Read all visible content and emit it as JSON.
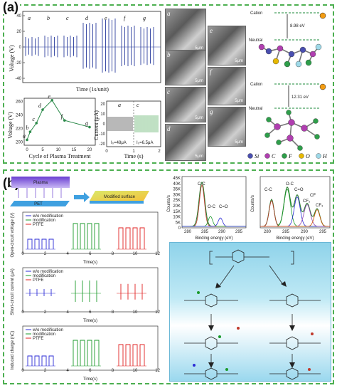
{
  "panel_a": {
    "label": "(a)",
    "voltage_time": {
      "ylabel": "Voltage (V)",
      "xlabel": "Time (1s/unit)",
      "yticks": [
        "40",
        "20",
        "0",
        "-20",
        "-40"
      ],
      "segments": [
        "a",
        "b",
        "c",
        "d",
        "e",
        "f",
        "g"
      ]
    },
    "voltage_cycle": {
      "ylabel": "Voltage (V)",
      "xlabel": "Cycle of Plasma Treatment",
      "yticks": [
        "260",
        "240",
        "220",
        "200"
      ],
      "xticks": [
        "0",
        "5",
        "10",
        "15",
        "20"
      ],
      "points_labels": [
        "a",
        "b",
        "c",
        "d",
        "e",
        "f",
        "g"
      ]
    },
    "current_time": {
      "ylabel": "Current (μA)",
      "xlabel": "Time (s)",
      "yticks": [
        "20",
        "10",
        "0",
        "-10",
        "-20"
      ],
      "xticks": [
        "0",
        "1",
        "2"
      ],
      "left_tag": "a",
      "right_tag": "c",
      "left_value": "I₀=48μA",
      "right_value": "I₀=6.5μA"
    },
    "sem_images": [
      {
        "tag": "a",
        "scale": "5μm"
      },
      {
        "tag": "b",
        "scale": "5μm"
      },
      {
        "tag": "c",
        "scale": "5μm"
      },
      {
        "tag": "d",
        "scale": "5μm"
      },
      {
        "tag": "e",
        "scale": "5μm"
      },
      {
        "tag": "f",
        "scale": "5μm"
      },
      {
        "tag": "g",
        "scale": "5μm"
      }
    ],
    "energy": {
      "top": {
        "cation": "Cation",
        "neutral": "Neutral",
        "value": "8.98 eV"
      },
      "bottom": {
        "cation": "Cation",
        "neutral": "Neutral",
        "value": "12.31 eV"
      }
    },
    "legend": [
      "Si",
      "C",
      "F",
      "O",
      "H"
    ],
    "legend_colors": [
      "#4a4fb0",
      "#b03fb0",
      "#2e9e4a",
      "#e6b800",
      "#9ed9e8"
    ]
  },
  "panel_b": {
    "label": "(b)",
    "plasma": {
      "top_label": "Plasma",
      "result_label": "Modified surface",
      "substrate_label": "PET"
    },
    "oc": {
      "ylabel": "Open-circuit voltage (V)",
      "xlabel": "Time(s)",
      "legend": [
        "w/o modification",
        "modification",
        "PTFE"
      ],
      "xticks": [
        "0",
        "2",
        "4",
        "6",
        "8",
        "10",
        "12"
      ]
    },
    "sc": {
      "ylabel": "Short-circuit current (μA)",
      "xlabel": "Time(s)",
      "legend": [
        "w/o modification",
        "modification",
        "PTFE"
      ],
      "xticks": [
        "0",
        "2",
        "4",
        "6",
        "8",
        "10",
        "12"
      ]
    },
    "ch": {
      "ylabel": "Induced charge (nC)",
      "xlabel": "Time(s)",
      "legend": [
        "w/o modification",
        "modification",
        "PTFE"
      ],
      "xticks": [
        "0",
        "2",
        "4",
        "6",
        "8",
        "10",
        "12"
      ]
    },
    "xps_left": {
      "ylabel": "Counts/s",
      "xlabel": "Binding energy (eV)",
      "yticks": [
        "45K",
        "40K",
        "35K",
        "30K",
        "25K",
        "20K",
        "15K",
        "10K",
        "5K",
        "0"
      ],
      "xticks": [
        "280",
        "285",
        "290",
        "295"
      ],
      "peaks": [
        "C-C",
        "O-C",
        "C=O"
      ]
    },
    "xps_right": {
      "ylabel": "Counts/s",
      "xlabel": "Binding energy (eV)",
      "xticks": [
        "280",
        "285",
        "290",
        "295"
      ],
      "peaks": [
        "C-C",
        "O-C",
        "C=O",
        "CF",
        "CF₂",
        "CF₃"
      ]
    },
    "series_colors": {
      "wo": "#2b2bd6",
      "mod": "#1a9a2a",
      "ptfe": "#e02020"
    }
  }
}
